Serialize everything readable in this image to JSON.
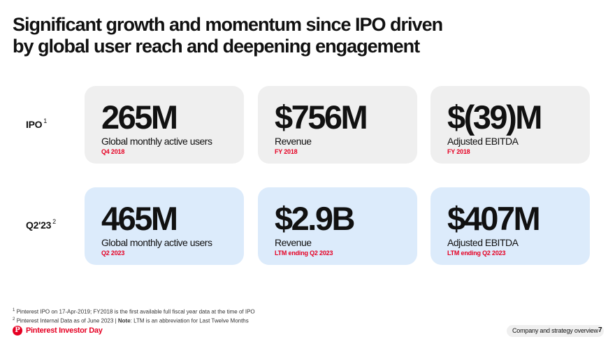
{
  "title": {
    "line1": "Significant growth and momentum since IPO driven",
    "line2": "by global user reach and deepening engagement"
  },
  "rows": [
    {
      "label": "IPO",
      "footnote_ref": "1",
      "metrics": [
        {
          "value": "265M",
          "description": "Global monthly active users",
          "period": "Q4 2018"
        },
        {
          "value": "$756M",
          "description": "Revenue",
          "period": "FY 2018"
        },
        {
          "value": "$(39)M",
          "description": "Adjusted EBITDA",
          "period": "FY 2018"
        }
      ]
    },
    {
      "label": "Q2'23",
      "footnote_ref": "2",
      "metrics": [
        {
          "value": "465M",
          "description": "Global monthly active users",
          "period": "Q2 2023"
        },
        {
          "value": "$2.9B",
          "description": "Revenue",
          "period": "LTM ending Q2 2023"
        },
        {
          "value": "$407M",
          "description": "Adjusted EBITDA",
          "period": "LTM ending Q2 2023"
        }
      ]
    }
  ],
  "footnotes": {
    "note1_ref": "1",
    "note1": "Pinterest IPO on 17-Apr-2019; FY2018 is the first available full fiscal year data at the time of IPO",
    "note2_ref": "2",
    "note2_prefix": "Pinterest Internal Data as of June 2023 | ",
    "note2_bold": "Note",
    "note2_suffix": ": LTM is an abbreviation for Last Twelve Months"
  },
  "footer": {
    "logo_glyph": "P",
    "brand": "Pinterest Investor Day",
    "section": "Company and strategy overview",
    "page_number": "7"
  },
  "colors": {
    "accent": "#e60023",
    "card_top": "#efefef",
    "card_bottom": "#dcebfb"
  }
}
